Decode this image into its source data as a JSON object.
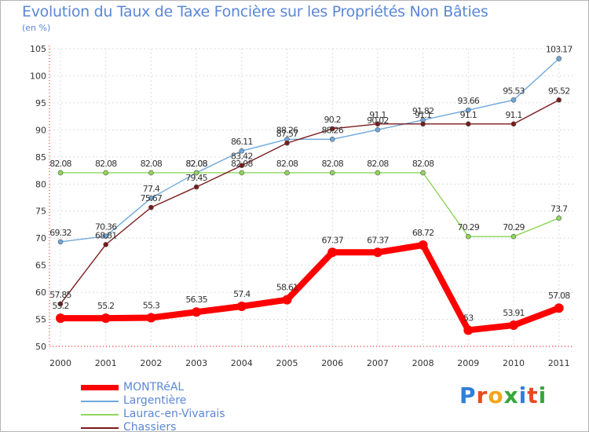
{
  "chart_data": {
    "type": "line",
    "title": "Evolution du Taux de Taxe Foncière sur les Propriétés Non Bâties",
    "ylabel": "(en %)",
    "xlabel": "",
    "ylim": [
      50,
      105
    ],
    "yticks": [
      50,
      55,
      60,
      65,
      70,
      75,
      80,
      85,
      90,
      95,
      100,
      105
    ],
    "categories": [
      "2000",
      "2001",
      "2002",
      "2003",
      "2004",
      "2005",
      "2006",
      "2007",
      "2008",
      "2009",
      "2010",
      "2011"
    ],
    "series": [
      {
        "name": "MONTRéAL",
        "color": "#ff0000",
        "values": [
          55.2,
          55.2,
          55.3,
          56.35,
          57.4,
          58.61,
          67.37,
          67.37,
          68.72,
          53,
          53.91,
          57.08
        ],
        "labels": [
          "55.2",
          "55.2",
          "55.3",
          "56.35",
          "57.4",
          "58.61",
          "67.37",
          "67.37",
          "68.72",
          "53",
          "53.91",
          "57.08"
        ]
      },
      {
        "name": "Largentière",
        "color": "#6fa8dc",
        "values": [
          69.32,
          70.36,
          77.4,
          82.08,
          86.11,
          88.26,
          88.26,
          90.02,
          91.82,
          93.66,
          95.53,
          103.17
        ],
        "labels": [
          "69.32",
          "70.36",
          "77.4",
          "82.08",
          "86.11",
          "88.26",
          "88.26",
          "90.02",
          "91.82",
          "93.66",
          "95.53",
          "103.17"
        ]
      },
      {
        "name": "Laurac-en-Vivarais",
        "color": "#8fd65a",
        "values": [
          82.08,
          82.08,
          82.08,
          82.08,
          82.08,
          82.08,
          82.08,
          82.08,
          82.08,
          70.29,
          70.29,
          73.7
        ],
        "labels": [
          "82.08",
          "82.08",
          "82.08",
          "82.08",
          "82.08",
          "82.08",
          "82.08",
          "82.08",
          "82.08",
          "70.29",
          "70.29",
          "73.7"
        ]
      },
      {
        "name": "Chassiers",
        "color": "#7b1a1a",
        "values": [
          57.85,
          68.81,
          75.67,
          79.45,
          83.42,
          87.57,
          90.2,
          91.1,
          91.1,
          91.1,
          91.1,
          95.52
        ],
        "labels": [
          "57.85",
          "68.81",
          "75.67",
          "79.45",
          "83.42",
          "87.57",
          "90.2",
          "91.1",
          "91.1",
          "91.1",
          "91.1",
          "95.52"
        ]
      }
    ]
  },
  "legend": {
    "items": [
      "MONTRéAL",
      "Largentière",
      "Laurac-en-Vivarais",
      "Chassiers"
    ]
  },
  "brand": {
    "name": "Proxiti",
    "letters": [
      "P",
      "r",
      "o",
      "x",
      "i",
      "t",
      "i"
    ],
    "colors": [
      "#2f7fd8",
      "#e84a1e",
      "#f2a51a",
      "#36a63c",
      "#2f7fd8",
      "#e84a1e",
      "#36a63c"
    ]
  }
}
